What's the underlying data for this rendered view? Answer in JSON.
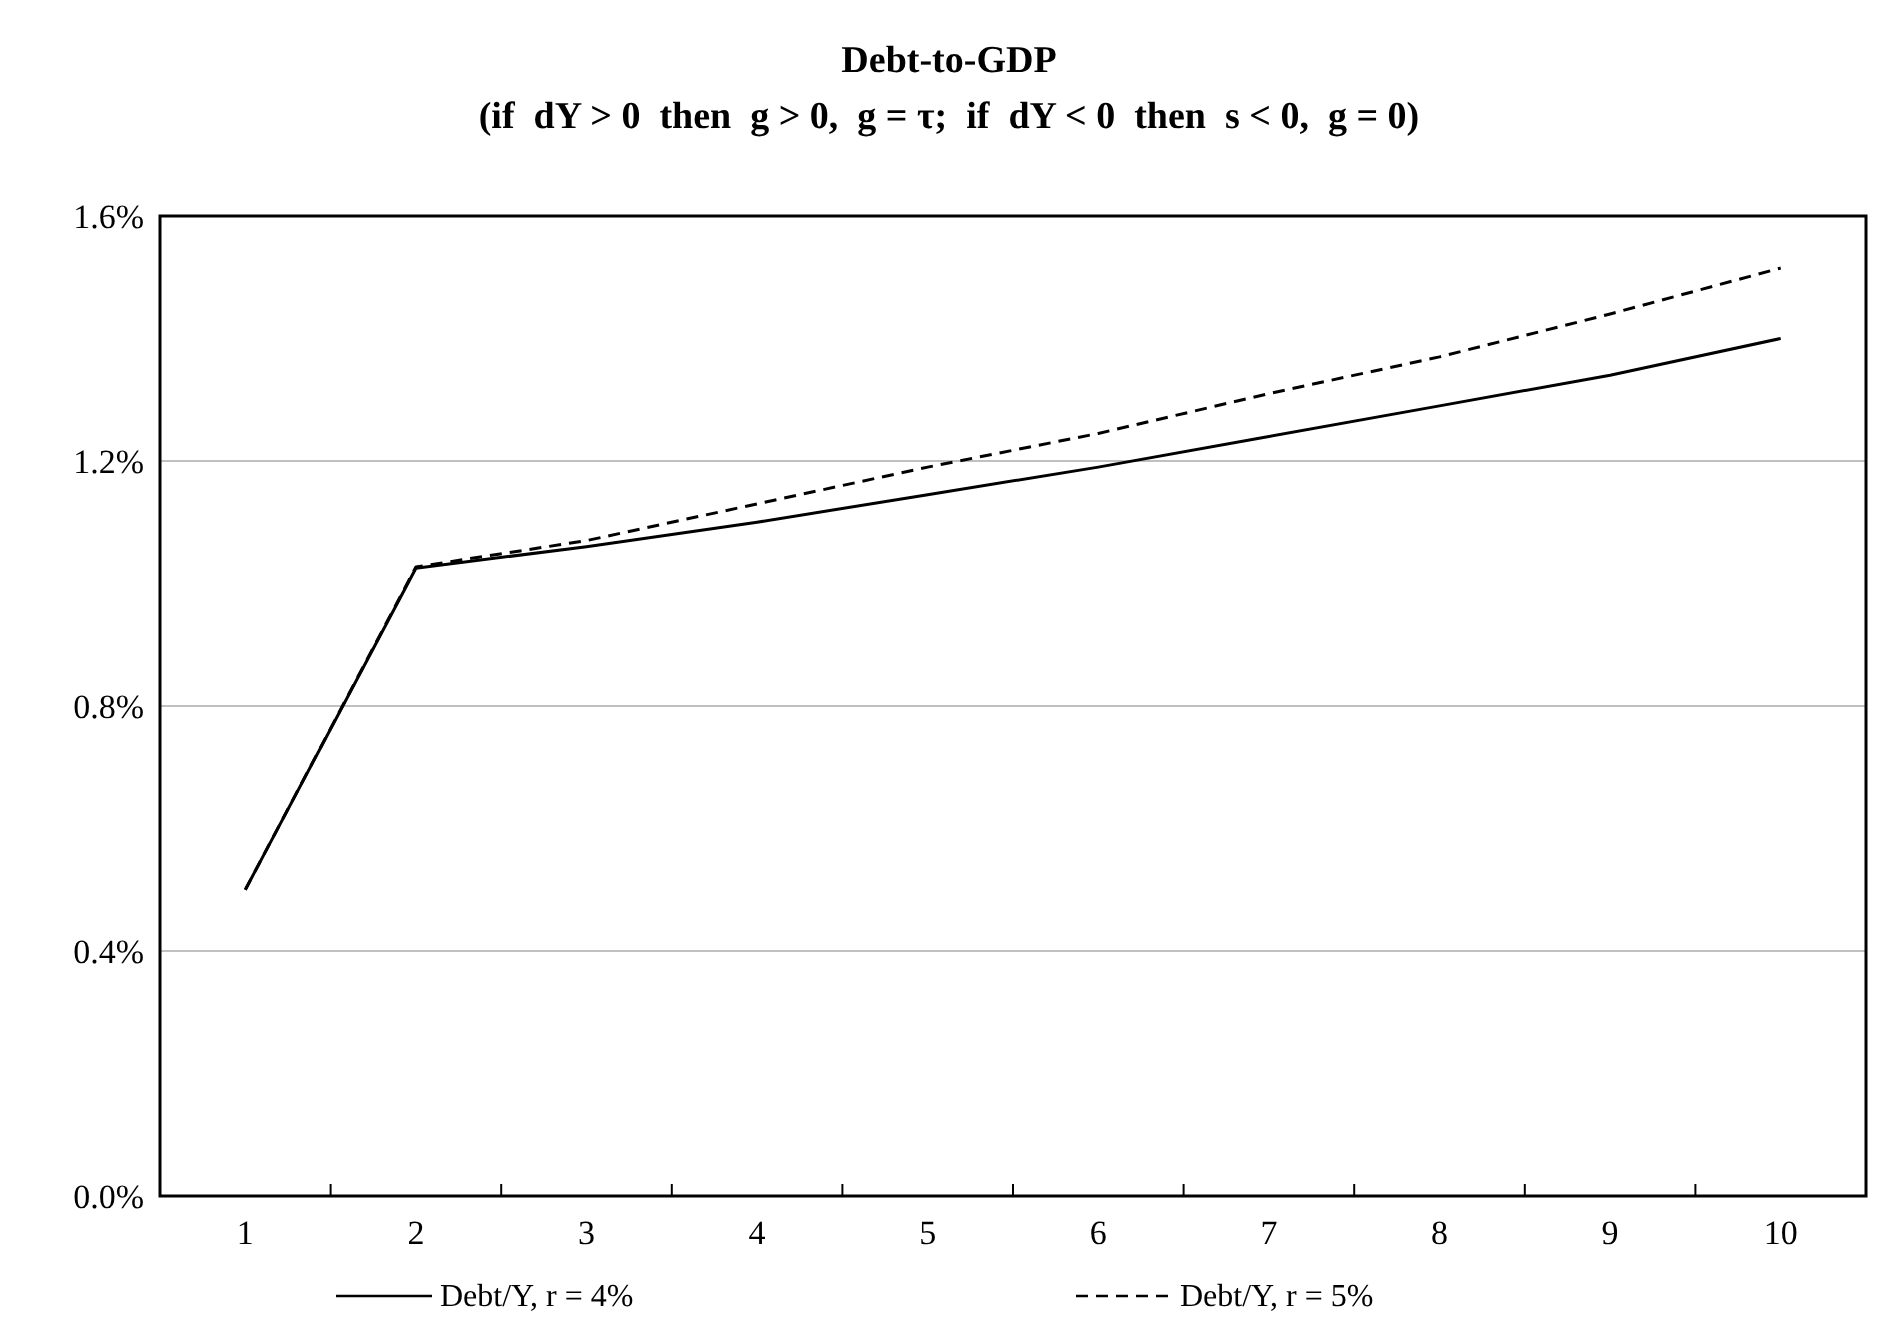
{
  "chart_data": {
    "type": "line",
    "title": "Debt-to-GDP",
    "subtitle": "(if  dY > 0  then  g > 0,  g = τ;  if  dY < 0  then  s < 0,  g = 0)",
    "categories": [
      "1",
      "2",
      "3",
      "4",
      "5",
      "6",
      "7",
      "8",
      "9",
      "10"
    ],
    "series": [
      {
        "name": "Debt/Y, r = 4%",
        "color": "#000000",
        "line_style": "solid",
        "values": [
          0.5,
          1.025,
          1.06,
          1.1,
          1.145,
          1.19,
          1.24,
          1.29,
          1.34,
          1.4
        ]
      },
      {
        "name": "Debt/Y, r = 5%",
        "color": "#000000",
        "line_style": "dashed",
        "values": [
          0.5,
          1.027,
          1.07,
          1.13,
          1.19,
          1.245,
          1.31,
          1.37,
          1.44,
          1.515
        ]
      }
    ],
    "ylim": [
      0,
      1.6
    ],
    "yticks": [
      {
        "value": 0,
        "label": "0.0%"
      },
      {
        "value": 0.4,
        "label": "0.4%"
      },
      {
        "value": 0.8,
        "label": "0.8%"
      },
      {
        "value": 1.2,
        "label": "1.2%"
      },
      {
        "value": 1.6,
        "label": "1.6%"
      }
    ],
    "grid": "y",
    "legend": "bottom",
    "marker": "none"
  }
}
